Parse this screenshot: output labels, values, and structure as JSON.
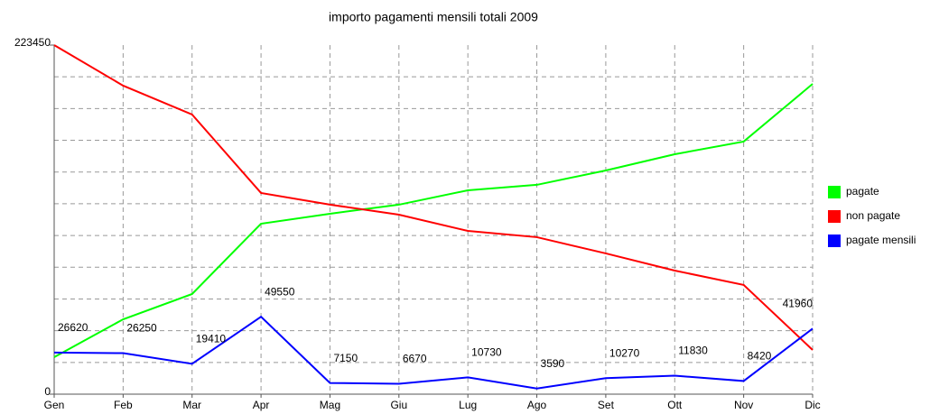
{
  "chart_data": {
    "type": "line",
    "title": "importo pagamenti mensili totali 2009",
    "categories": [
      "Gen",
      "Feb",
      "Mar",
      "Apr",
      "Mag",
      "Giu",
      "Lug",
      "Ago",
      "Set",
      "Ott",
      "Nov",
      "Dic"
    ],
    "series": [
      {
        "name": "pagate",
        "color": "#00ff00",
        "values": [
          23700,
          47900,
          64100,
          109100,
          115500,
          121300,
          130500,
          134000,
          143200,
          153600,
          161700,
          198600
        ]
      },
      {
        "name": "non pagate",
        "color": "#ff0000",
        "values": [
          223450,
          197500,
          179000,
          128800,
          121300,
          114900,
          104500,
          100500,
          90100,
          79100,
          69900,
          28300
        ]
      },
      {
        "name": "pagate mensili",
        "color": "#0000ff",
        "values": [
          26620,
          26250,
          19410,
          49550,
          7150,
          6670,
          10730,
          3590,
          10270,
          11830,
          8420,
          41960
        ],
        "labels": true
      }
    ],
    "ylim": [
      0,
      223450
    ],
    "yticks": [
      0,
      223450
    ],
    "grid": true,
    "grid_divisions": 11,
    "legend": "right"
  }
}
